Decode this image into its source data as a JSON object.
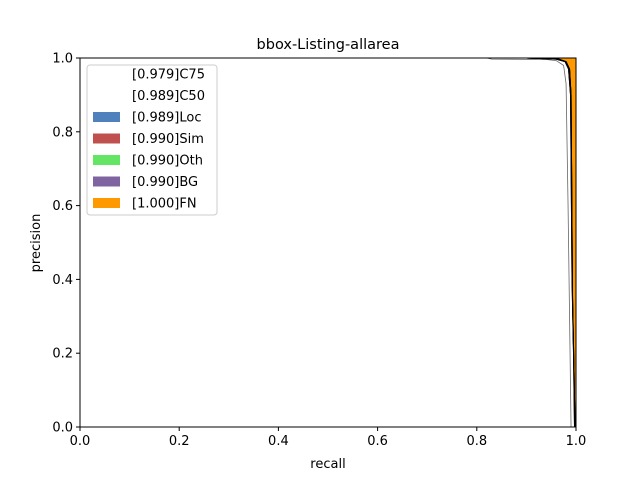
{
  "chart_data": {
    "type": "area",
    "title": "bbox-Listing-allarea",
    "xlabel": "recall",
    "ylabel": "precision",
    "xlim": [
      0,
      1
    ],
    "ylim": [
      0,
      1
    ],
    "xticks": [
      "0.0",
      "0.2",
      "0.4",
      "0.6",
      "0.8",
      "1.0"
    ],
    "yticks": [
      "0.0",
      "0.2",
      "0.4",
      "0.6",
      "0.8",
      "1.0"
    ],
    "grid": false,
    "legend_position": "top-left",
    "series": [
      {
        "name": "[0.979]C75",
        "color": "#ffffff",
        "points": [
          [
            0,
            1.0
          ],
          [
            0.82,
            1.0
          ],
          [
            0.83,
            0.997
          ],
          [
            0.94,
            0.996
          ],
          [
            0.96,
            0.993
          ],
          [
            0.975,
            0.98
          ],
          [
            0.98,
            0.93
          ],
          [
            0.984,
            0.6
          ],
          [
            0.988,
            0.2
          ],
          [
            0.99,
            0.0
          ]
        ]
      },
      {
        "name": "[0.989]C50",
        "color": "#ffffff",
        "points": [
          [
            0,
            1.0
          ],
          [
            0.9,
            1.0
          ],
          [
            0.96,
            0.997
          ],
          [
            0.978,
            0.99
          ],
          [
            0.985,
            0.97
          ],
          [
            0.989,
            0.9
          ],
          [
            0.992,
            0.4
          ],
          [
            0.995,
            0.2
          ],
          [
            0.997,
            0.0
          ]
        ]
      },
      {
        "name": "[0.989]Loc",
        "color": "#4f81bd",
        "points": [
          [
            0,
            1.0
          ],
          [
            0.9,
            1.0
          ],
          [
            0.96,
            0.997
          ],
          [
            0.978,
            0.99
          ],
          [
            0.985,
            0.97
          ],
          [
            0.989,
            0.9
          ],
          [
            0.992,
            0.4
          ],
          [
            0.995,
            0.2
          ],
          [
            0.997,
            0.0
          ]
        ]
      },
      {
        "name": "[0.990]Sim",
        "color": "#c0504d",
        "points": [
          [
            0,
            1.0
          ],
          [
            0.9,
            1.0
          ],
          [
            0.965,
            0.997
          ],
          [
            0.98,
            0.99
          ],
          [
            0.987,
            0.97
          ],
          [
            0.99,
            0.9
          ],
          [
            0.993,
            0.35
          ],
          [
            0.996,
            0.15
          ],
          [
            0.998,
            0.0
          ]
        ]
      },
      {
        "name": "[0.990]Oth",
        "color": "#64e564",
        "points": [
          [
            0,
            1.0
          ],
          [
            0.9,
            1.0
          ],
          [
            0.965,
            0.997
          ],
          [
            0.98,
            0.99
          ],
          [
            0.987,
            0.97
          ],
          [
            0.99,
            0.9
          ],
          [
            0.993,
            0.35
          ],
          [
            0.996,
            0.15
          ],
          [
            0.998,
            0.0
          ]
        ]
      },
      {
        "name": "[0.990]BG",
        "color": "#8064a2",
        "points": [
          [
            0,
            1.0
          ],
          [
            0.9,
            1.0
          ],
          [
            0.965,
            0.997
          ],
          [
            0.98,
            0.99
          ],
          [
            0.987,
            0.97
          ],
          [
            0.99,
            0.9
          ],
          [
            0.993,
            0.35
          ],
          [
            0.996,
            0.15
          ],
          [
            0.998,
            0.0
          ]
        ]
      },
      {
        "name": "[1.000]FN",
        "color": "#ff9900",
        "points": [
          [
            0,
            1.0
          ],
          [
            1.0,
            1.0
          ],
          [
            1.0,
            0.0
          ]
        ]
      }
    ]
  }
}
